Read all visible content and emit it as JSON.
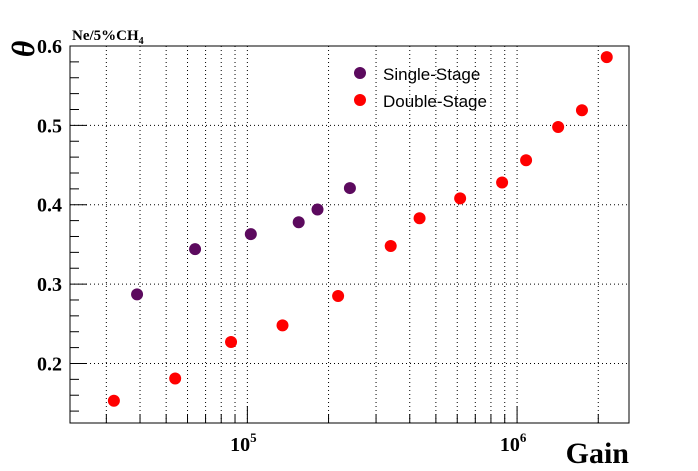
{
  "chart_data": {
    "type": "scatter",
    "title": "Ne/5%CH",
    "title_subscript": "4",
    "xlabel": "Gain",
    "ylabel": "θ",
    "x_scale": "log",
    "xlim": [
      22000,
      2600000
    ],
    "ylim": [
      0.125,
      0.6
    ],
    "x_tick_labels": [
      {
        "value": 100000,
        "base": "10",
        "exp": "5"
      },
      {
        "value": 1000000,
        "base": "10",
        "exp": "6"
      }
    ],
    "y_tick_labels": [
      "0.2",
      "0.3",
      "0.4",
      "0.5",
      "0.6"
    ],
    "y_ticks": [
      0.2,
      0.3,
      0.4,
      0.5,
      0.6
    ],
    "grid": true,
    "legend_position": "top-right",
    "series": [
      {
        "name": "Single-Stage",
        "color": "#5c0a5e",
        "x": [
          39000,
          64000,
          103000,
          155000,
          182000,
          240000
        ],
        "y": [
          0.287,
          0.344,
          0.363,
          0.378,
          0.394,
          0.421
        ]
      },
      {
        "name": "Double-Stage",
        "color": "#ff0000",
        "x": [
          32000,
          54000,
          87000,
          135000,
          217000,
          340000,
          435000,
          615000,
          880000,
          1080000,
          1420000,
          1740000,
          2150000
        ],
        "y": [
          0.153,
          0.181,
          0.227,
          0.248,
          0.285,
          0.348,
          0.383,
          0.408,
          0.428,
          0.456,
          0.498,
          0.519,
          0.586
        ]
      }
    ]
  }
}
